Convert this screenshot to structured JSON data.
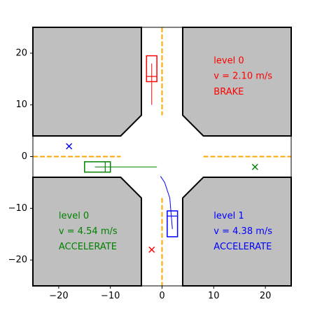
{
  "chart_data": {
    "type": "scatter",
    "title": "",
    "xlabel": "",
    "ylabel": "",
    "xlim": [
      -25,
      25
    ],
    "ylim": [
      -25,
      25
    ],
    "xticks": [
      -20,
      -10,
      0,
      10,
      20
    ],
    "yticks": [
      20,
      10,
      0,
      -10,
      -20
    ],
    "xtick_labels": [
      "−20",
      "−10",
      "0",
      "10",
      "20"
    ],
    "ytick_labels": [
      "20",
      "10",
      "0",
      "−10",
      "−20"
    ],
    "grid": false,
    "colors": {
      "block_fill": "#bfbfbf",
      "block_edge": "#000000",
      "lane_line": "#ffa500",
      "red": "#ff0000",
      "green": "#008000",
      "blue": "#0000ff"
    },
    "blocks": [
      {
        "corner": "top-left",
        "points": [
          [
            -25,
            25
          ],
          [
            -4,
            25
          ],
          [
            -4,
            8
          ],
          [
            -8,
            4
          ],
          [
            -25,
            4
          ]
        ]
      },
      {
        "corner": "top-right",
        "points": [
          [
            4,
            25
          ],
          [
            25,
            25
          ],
          [
            25,
            4
          ],
          [
            8,
            4
          ],
          [
            4,
            8
          ]
        ]
      },
      {
        "corner": "bottom-left",
        "points": [
          [
            -25,
            -4
          ],
          [
            -8,
            -4
          ],
          [
            -4,
            -8
          ],
          [
            -4,
            -25
          ],
          [
            -25,
            -25
          ]
        ]
      },
      {
        "corner": "bottom-right",
        "points": [
          [
            4,
            -8
          ],
          [
            8,
            -4
          ],
          [
            25,
            -4
          ],
          [
            25,
            -25
          ],
          [
            4,
            -25
          ]
        ]
      }
    ],
    "lane_lines": [
      {
        "x": [
          0,
          0
        ],
        "y": [
          25,
          8
        ]
      },
      {
        "x": [
          0,
          0
        ],
        "y": [
          -8,
          -25
        ]
      },
      {
        "x": [
          -25,
          -8
        ],
        "y": [
          0,
          0
        ]
      },
      {
        "x": [
          8,
          25
        ],
        "y": [
          0,
          0
        ]
      }
    ],
    "vehicles": [
      {
        "color": "red",
        "level": "level 0",
        "velocity": "v = 2.10 m/s",
        "action": "BRAKE",
        "box": {
          "xmin": -3,
          "xmax": -1,
          "ymin": 14.5,
          "ymax": 19.5
        },
        "heading_line": {
          "x": [
            -3,
            -1
          ],
          "y": [
            15.5,
            15.5
          ]
        },
        "path": {
          "x": [
            -2,
            -2
          ],
          "y": [
            18,
            10
          ]
        },
        "goal": [
          -2,
          -18
        ],
        "label_pos": [
          10,
          18.5
        ]
      },
      {
        "color": "green",
        "level": "level 0",
        "velocity": "v = 4.54 m/s",
        "action": "ACCELERATE",
        "box": {
          "xmin": -15,
          "xmax": -10,
          "ymin": -3,
          "ymax": -1
        },
        "heading_line": {
          "x": [
            -11,
            -11
          ],
          "y": [
            -3,
            -1
          ]
        },
        "path": {
          "x": [
            -13,
            -1
          ],
          "y": [
            -2,
            -2
          ]
        },
        "goal": [
          18,
          -2
        ],
        "label_pos": [
          -20,
          -11.5
        ]
      },
      {
        "color": "blue",
        "level": "level 1",
        "velocity": "v = 4.38 m/s",
        "action": "ACCELERATE",
        "box": {
          "xmin": 1,
          "xmax": 3,
          "ymin": -15.5,
          "ymax": -10.5
        },
        "heading_line": {
          "x": [
            1,
            3
          ],
          "y": [
            -11.5,
            -11.5
          ]
        },
        "path": {
          "x": [
            2,
            1.5,
            0.5,
            -0.3
          ],
          "y": [
            -14,
            -8,
            -5,
            -3.8
          ]
        },
        "goal": [
          -18,
          2
        ],
        "label_pos": [
          10,
          -11.5
        ]
      }
    ],
    "text_line_spacing": 3
  }
}
